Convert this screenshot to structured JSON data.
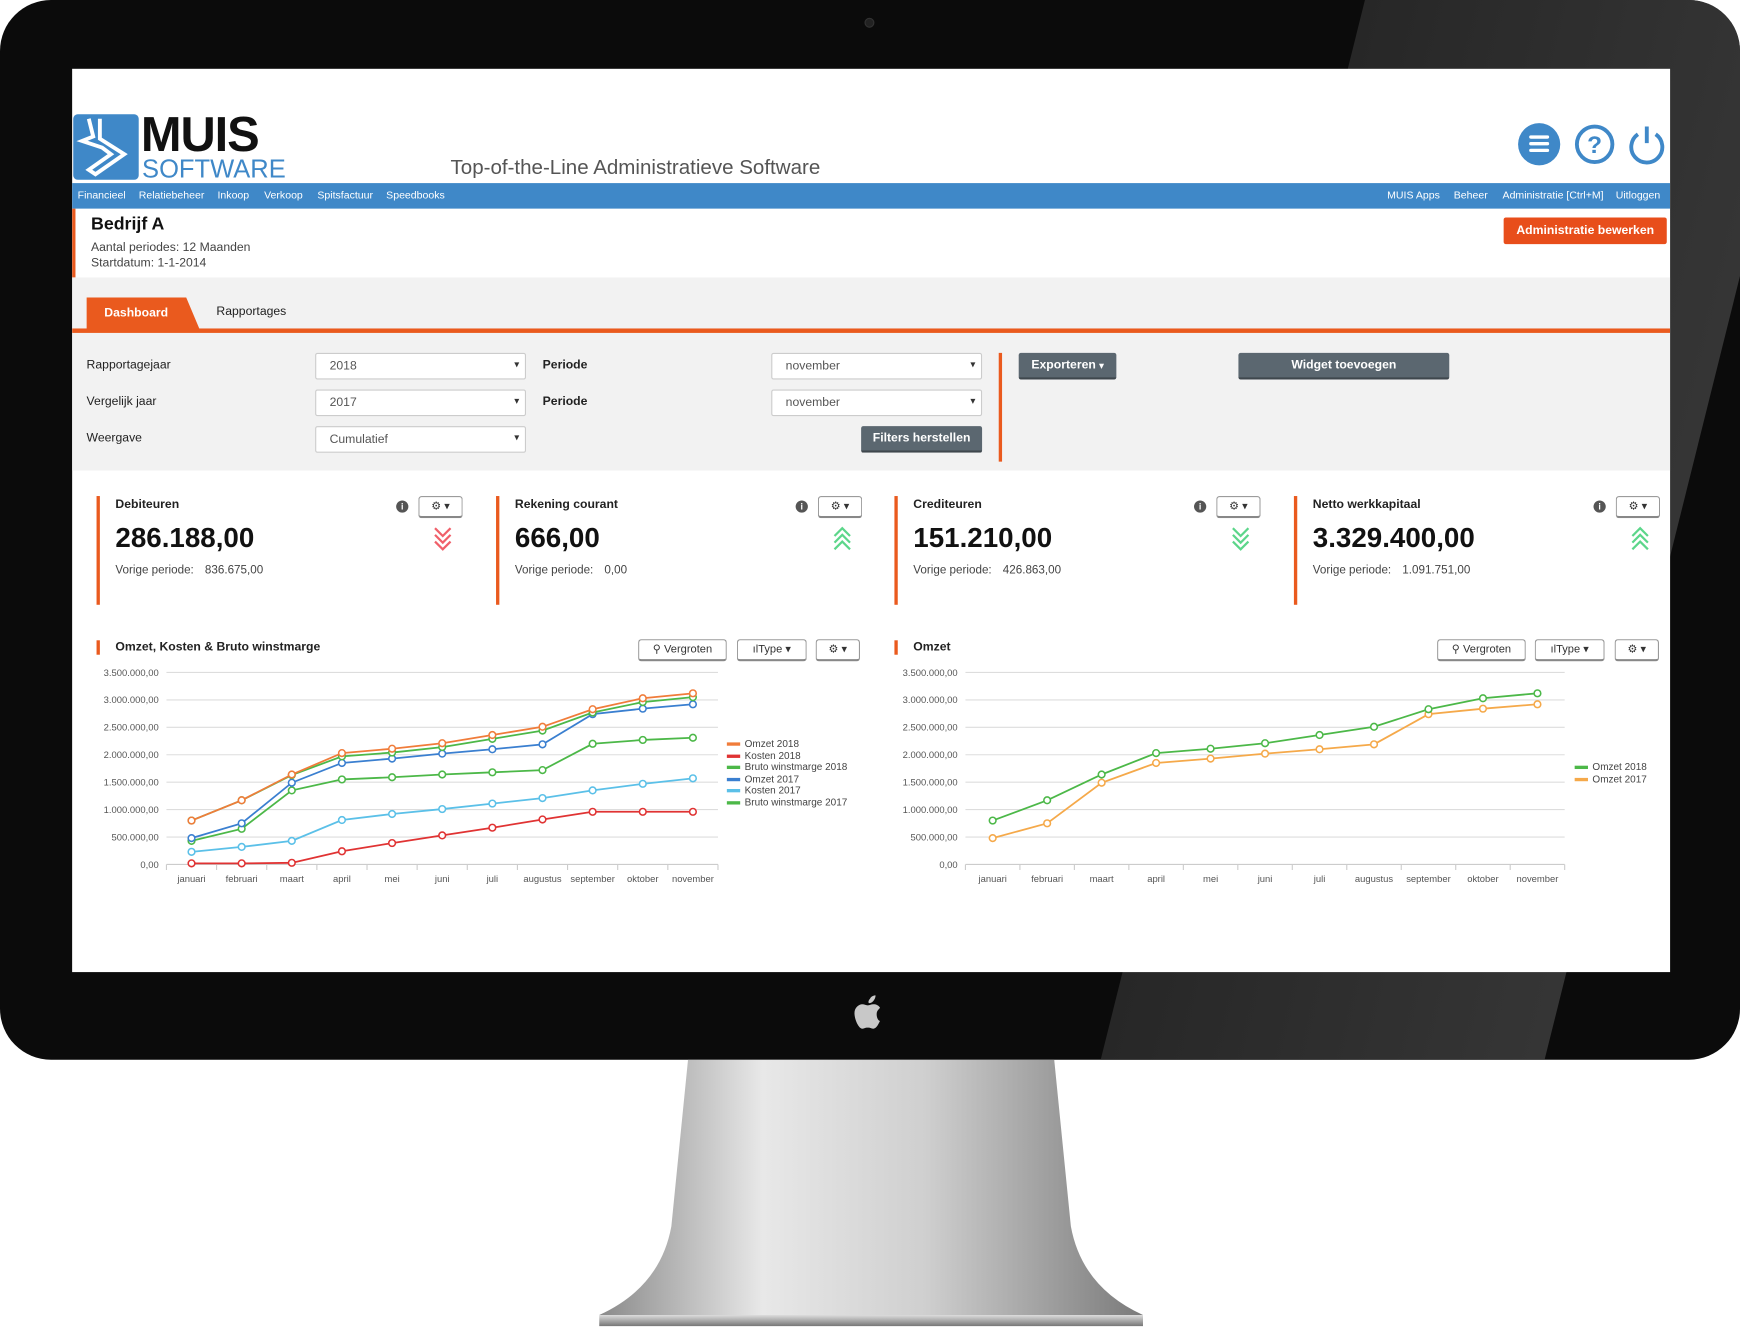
{
  "header": {
    "logo_top": "MUIS",
    "logo_bottom": "SOFTWARE",
    "tagline": "Top-of-the-Line Administratieve Software",
    "icons": [
      "menu-icon",
      "help-icon",
      "power-icon"
    ]
  },
  "nav": {
    "left": [
      "Financieel",
      "Relatiebeheer",
      "Inkoop",
      "Verkoop",
      "Spitsfactuur",
      "Speedbooks"
    ],
    "right": [
      "MUIS Apps",
      "Beheer",
      "Administratie [Ctrl+M]",
      "Uitloggen"
    ]
  },
  "company": {
    "name": "Bedrijf A",
    "periods": "Aantal periodes: 12 Maanden",
    "start": "Startdatum: 1-1-2014",
    "edit_button": "Administratie bewerken"
  },
  "tabs": [
    {
      "label": "Dashboard",
      "active": true
    },
    {
      "label": "Rapportages",
      "active": false
    }
  ],
  "filters": {
    "year_label": "Rapportagejaar",
    "year_value": "2018",
    "compare_label": "Vergelijk jaar",
    "compare_value": "2017",
    "view_label": "Weergave",
    "view_value": "Cumulatief",
    "period_label": "Periode",
    "period_value": "november",
    "period2_label": "Periode",
    "period2_value": "november",
    "reset_button": "Filters herstellen",
    "export_button": "Exporteren",
    "add_widget_button": "Widget toevoegen"
  },
  "kpis": [
    {
      "title": "Debiteuren",
      "value": "286.188,00",
      "prev_label": "Vorige periode:",
      "prev_value": "836.675,00",
      "trend": "down",
      "trend_color": "#f0606a"
    },
    {
      "title": "Rekening courant",
      "value": "666,00",
      "prev_label": "Vorige periode:",
      "prev_value": "0,00",
      "trend": "up",
      "trend_color": "#5cd68a"
    },
    {
      "title": "Crediteuren",
      "value": "151.210,00",
      "prev_label": "Vorige periode:",
      "prev_value": "426.863,00",
      "trend": "down",
      "trend_color": "#5cd68a"
    },
    {
      "title": "Netto werkkapitaal",
      "value": "3.329.400,00",
      "prev_label": "Vorige periode:",
      "prev_value": "1.091.751,00",
      "trend": "up",
      "trend_color": "#5cd68a"
    }
  ],
  "widget_buttons": {
    "zoom": "Vergroten",
    "type": "Type"
  },
  "chart_data": [
    {
      "type": "line",
      "title": "Omzet, Kosten & Bruto winstmarge",
      "categories": [
        "januari",
        "februari",
        "maart",
        "april",
        "mei",
        "juni",
        "juli",
        "augustus",
        "september",
        "oktober",
        "november"
      ],
      "yticks": [
        "0,00",
        "500.000,00",
        "1.000.000,00",
        "1.500.000,00",
        "2.000.000,00",
        "2.500.000,00",
        "3.000.000,00",
        "3.500.000,00"
      ],
      "ylim": [
        0,
        3500000
      ],
      "grid": true,
      "legend": "right",
      "series": [
        {
          "name": "Omzet 2018",
          "color": "#f07c3a",
          "values": [
            800000,
            1170000,
            1640000,
            2030000,
            2110000,
            2210000,
            2360000,
            2510000,
            2830000,
            3030000,
            3120000
          ]
        },
        {
          "name": "Kosten 2018",
          "color": "#e03333",
          "values": [
            20000,
            20000,
            30000,
            240000,
            390000,
            530000,
            670000,
            820000,
            960000,
            960000,
            960000
          ]
        },
        {
          "name": "Bruto winstmarge 2018",
          "color": "#4cb848",
          "values": [
            800000,
            1170000,
            1630000,
            1970000,
            2040000,
            2140000,
            2290000,
            2440000,
            2770000,
            2960000,
            3050000
          ]
        },
        {
          "name": "Omzet 2017",
          "color": "#3a7fd0",
          "values": [
            480000,
            750000,
            1490000,
            1850000,
            1930000,
            2020000,
            2100000,
            2190000,
            2740000,
            2840000,
            2920000
          ]
        },
        {
          "name": "Kosten 2017",
          "color": "#5bc0e8",
          "values": [
            230000,
            320000,
            430000,
            810000,
            920000,
            1010000,
            1110000,
            1210000,
            1350000,
            1470000,
            1570000
          ]
        },
        {
          "name": "Bruto winstmarge 2017",
          "color": "#4cb848",
          "values": [
            430000,
            650000,
            1350000,
            1550000,
            1590000,
            1640000,
            1680000,
            1720000,
            2200000,
            2270000,
            2310000
          ]
        }
      ]
    },
    {
      "type": "line",
      "title": "Omzet",
      "categories": [
        "januari",
        "februari",
        "maart",
        "april",
        "mei",
        "juni",
        "juli",
        "augustus",
        "september",
        "oktober",
        "november"
      ],
      "yticks": [
        "0,00",
        "500.000,00",
        "1.000.000,00",
        "1.500.000,00",
        "2.000.000,00",
        "2.500.000,00",
        "3.000.000,00",
        "3.500.000,00"
      ],
      "ylim": [
        0,
        3500000
      ],
      "grid": true,
      "legend": "right",
      "series": [
        {
          "name": "Omzet 2018",
          "color": "#4cb848",
          "values": [
            800000,
            1170000,
            1640000,
            2030000,
            2110000,
            2210000,
            2360000,
            2510000,
            2830000,
            3030000,
            3120000
          ]
        },
        {
          "name": "Omzet 2017",
          "color": "#f5a94a",
          "values": [
            480000,
            750000,
            1490000,
            1850000,
            1930000,
            2020000,
            2100000,
            2190000,
            2740000,
            2840000,
            2920000
          ]
        }
      ]
    }
  ]
}
